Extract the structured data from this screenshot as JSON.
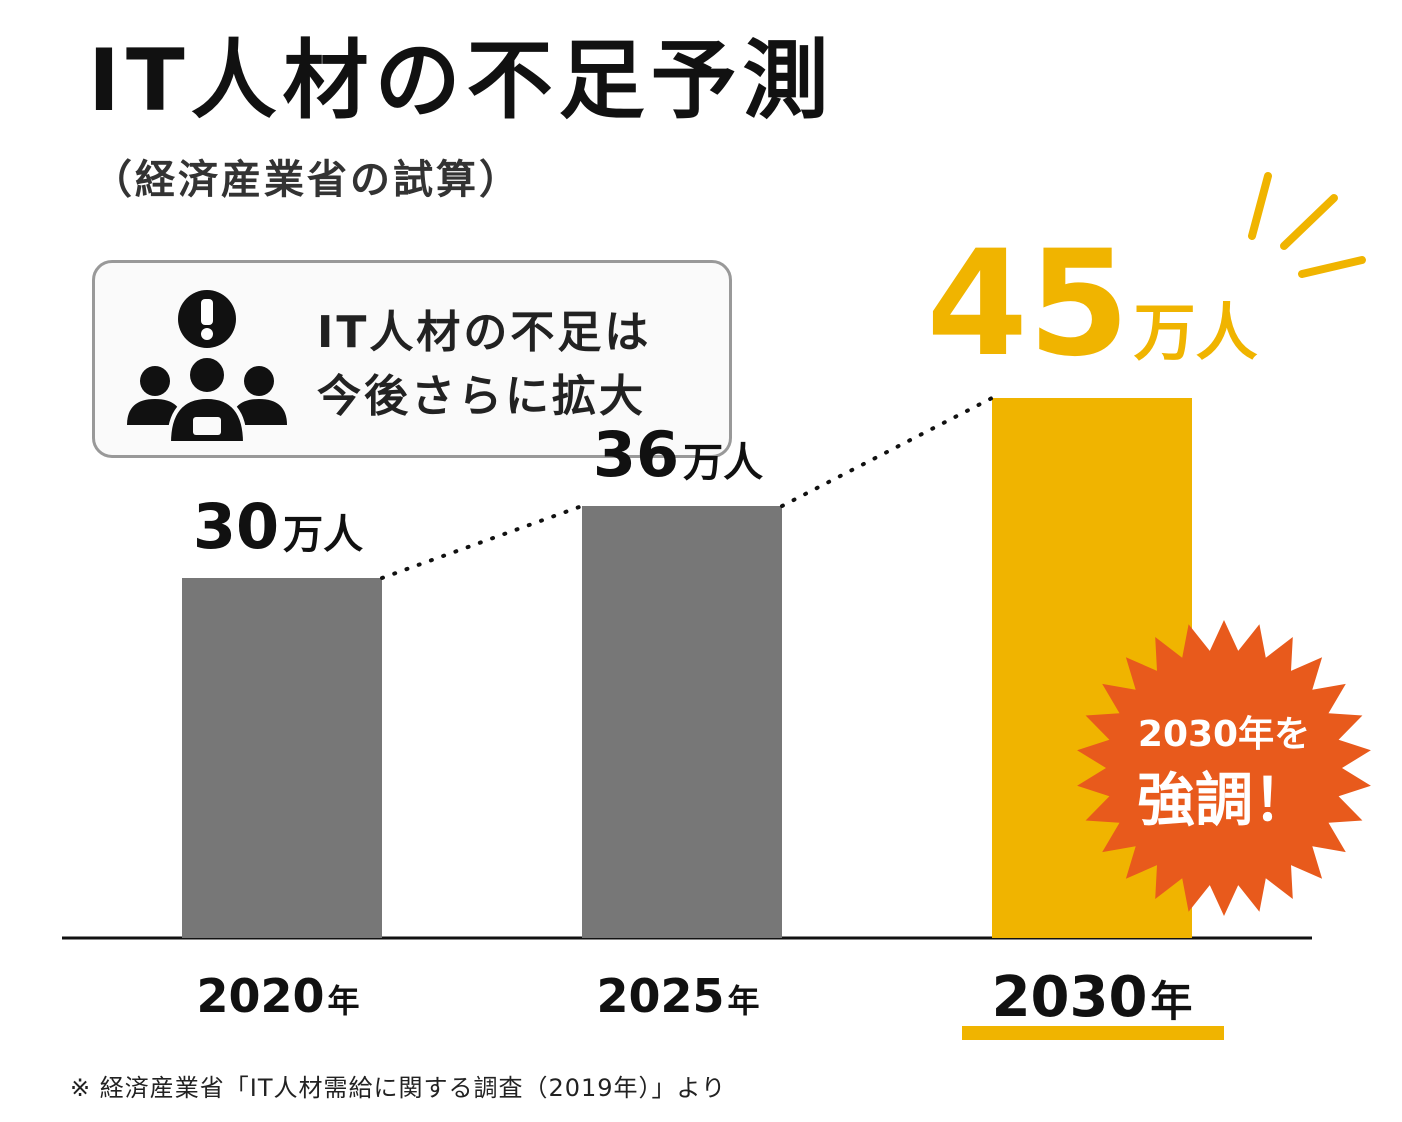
{
  "title": "IT人材の不足予測",
  "subtitle": "（経済産業省の試算）",
  "callout": {
    "line1": "IT人材の不足は",
    "line2": "今後さらに拡大",
    "icon": "people-alert-icon"
  },
  "badge": {
    "line1": "2030年を",
    "line2": "強調！",
    "color": "#e85a1c"
  },
  "footnote": "※ 経済産業省「IT人材需給に関する調査（2019年）」より",
  "chart_data": {
    "type": "bar",
    "title": "IT人材の不足予測",
    "categories": [
      "2020年",
      "2025年",
      "2030年"
    ],
    "category_numbers": [
      "2020",
      "2025",
      "2030"
    ],
    "category_unit": "年",
    "values": [
      30,
      36,
      45
    ],
    "value_unit": "万人",
    "ylim": [
      0,
      50
    ],
    "highlight_index": 2,
    "colors": {
      "default": "#777777",
      "highlight": "#f0b400"
    },
    "trend_line": "dotted",
    "grid": false,
    "legend": "none"
  }
}
